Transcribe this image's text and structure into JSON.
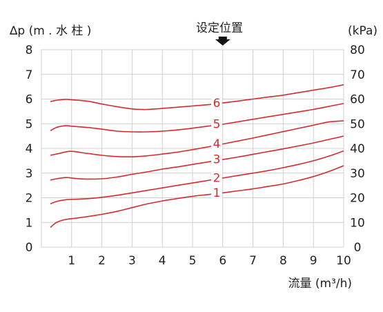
{
  "chart_data": {
    "type": "line",
    "ylabel_left": "∆p (m . 水 柱 )",
    "ylabel_right": "(kPa)",
    "xlabel": "流量 (m³/h)",
    "marker_label": "设定位置",
    "marker_x": 6,
    "xlim": [
      0,
      10
    ],
    "ylim": [
      0,
      8
    ],
    "ylim_right": [
      0,
      80
    ],
    "x_ticks": [
      "1",
      "2",
      "3",
      "4",
      "5",
      "6",
      "7",
      "8",
      "9",
      "10"
    ],
    "y_ticks_left": [
      "0",
      "1",
      "2",
      "3",
      "4",
      "5",
      "6",
      "7",
      "8"
    ],
    "y_ticks_right": [
      "0",
      "10",
      "20",
      "30",
      "40",
      "50",
      "60",
      "70",
      "80"
    ],
    "grid": true,
    "color": "#d7292e",
    "series": [
      {
        "name": "1",
        "x": [
          0.3,
          0.5,
          0.8,
          1.2,
          1.6,
          2.0,
          2.5,
          3.0,
          3.5,
          4.0,
          4.5,
          5.0,
          5.5,
          6.0,
          6.5,
          7.0,
          7.5,
          8.0,
          8.5,
          9.0,
          9.5,
          10.0
        ],
        "y": [
          0.8,
          1.0,
          1.12,
          1.18,
          1.25,
          1.33,
          1.45,
          1.6,
          1.75,
          1.87,
          1.97,
          2.06,
          2.13,
          2.2,
          2.28,
          2.36,
          2.46,
          2.56,
          2.7,
          2.86,
          3.06,
          3.3
        ]
      },
      {
        "name": "2",
        "x": [
          0.3,
          0.5,
          0.8,
          1.2,
          1.6,
          2.0,
          2.5,
          3.0,
          3.5,
          4.0,
          4.5,
          5.0,
          5.5,
          6.0,
          6.5,
          7.0,
          7.5,
          8.0,
          8.5,
          9.0,
          9.5,
          10.0
        ],
        "y": [
          1.75,
          1.85,
          1.92,
          1.94,
          1.97,
          2.02,
          2.1,
          2.2,
          2.3,
          2.4,
          2.5,
          2.6,
          2.7,
          2.8,
          2.9,
          3.0,
          3.1,
          3.22,
          3.35,
          3.5,
          3.68,
          3.9
        ]
      },
      {
        "name": "3",
        "x": [
          0.3,
          0.5,
          0.8,
          1.0,
          1.4,
          2.0,
          2.5,
          3.0,
          3.5,
          4.0,
          4.5,
          5.0,
          5.5,
          6.0,
          6.5,
          7.0,
          7.5,
          8.0,
          8.5,
          9.0,
          9.5,
          10.0
        ],
        "y": [
          2.72,
          2.77,
          2.82,
          2.8,
          2.76,
          2.77,
          2.84,
          2.95,
          3.05,
          3.16,
          3.25,
          3.35,
          3.45,
          3.55,
          3.65,
          3.76,
          3.87,
          3.98,
          4.1,
          4.22,
          4.36,
          4.5
        ]
      },
      {
        "name": "4",
        "x": [
          0.3,
          0.6,
          0.9,
          1.1,
          1.5,
          2.0,
          2.5,
          3.0,
          3.5,
          4.0,
          4.5,
          5.0,
          5.5,
          6.0,
          6.5,
          7.0,
          7.5,
          8.0,
          8.5,
          9.0,
          9.5,
          10.0
        ],
        "y": [
          3.72,
          3.8,
          3.88,
          3.87,
          3.8,
          3.72,
          3.67,
          3.66,
          3.7,
          3.77,
          3.85,
          3.95,
          4.06,
          4.18,
          4.3,
          4.42,
          4.55,
          4.68,
          4.81,
          4.94,
          5.07,
          5.12
        ]
      },
      {
        "name": "5",
        "x": [
          0.3,
          0.5,
          0.8,
          1.0,
          1.5,
          2.0,
          2.5,
          3.0,
          3.5,
          4.0,
          4.5,
          5.0,
          5.5,
          6.0,
          6.5,
          7.0,
          7.5,
          8.0,
          8.5,
          9.0,
          9.5,
          10.0
        ],
        "y": [
          4.72,
          4.85,
          4.92,
          4.9,
          4.85,
          4.78,
          4.7,
          4.67,
          4.67,
          4.7,
          4.75,
          4.82,
          4.9,
          4.98,
          5.08,
          5.18,
          5.28,
          5.38,
          5.48,
          5.58,
          5.7,
          5.82
        ]
      },
      {
        "name": "6",
        "x": [
          0.3,
          0.5,
          0.8,
          1.0,
          1.5,
          2.0,
          2.5,
          3.0,
          3.3,
          3.5,
          4.0,
          4.5,
          5.0,
          5.5,
          6.0,
          6.5,
          7.0,
          7.5,
          8.0,
          8.5,
          9.0,
          9.5,
          10.0
        ],
        "y": [
          5.9,
          5.95,
          5.99,
          5.97,
          5.92,
          5.8,
          5.69,
          5.6,
          5.58,
          5.58,
          5.62,
          5.67,
          5.72,
          5.77,
          5.84,
          5.92,
          6.0,
          6.08,
          6.16,
          6.26,
          6.36,
          6.46,
          6.58
        ]
      }
    ]
  }
}
